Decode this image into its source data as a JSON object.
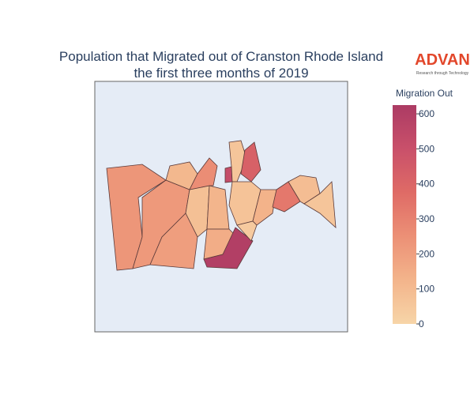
{
  "chart_data": {
    "type": "choropleth",
    "title": "Population that Migrated out of Cranston Rhode Island",
    "subtitle": "the first three months of 2019",
    "logo": "ADVAN",
    "logo_tagline": "Research through Technology",
    "colorbar_title": "Migration Out",
    "zlim": [
      0,
      625
    ],
    "zticks": [
      0,
      100,
      200,
      300,
      400,
      500,
      600
    ],
    "colorscale": [
      "#f7d5a8",
      "#f3b48b",
      "#ec9076",
      "#df6b66",
      "#c9506a",
      "#ac3b64"
    ],
    "values": [
      230,
      220,
      110,
      80,
      200,
      260,
      120,
      150,
      600,
      520,
      60,
      420,
      70,
      130,
      40,
      330,
      90,
      60
    ]
  }
}
